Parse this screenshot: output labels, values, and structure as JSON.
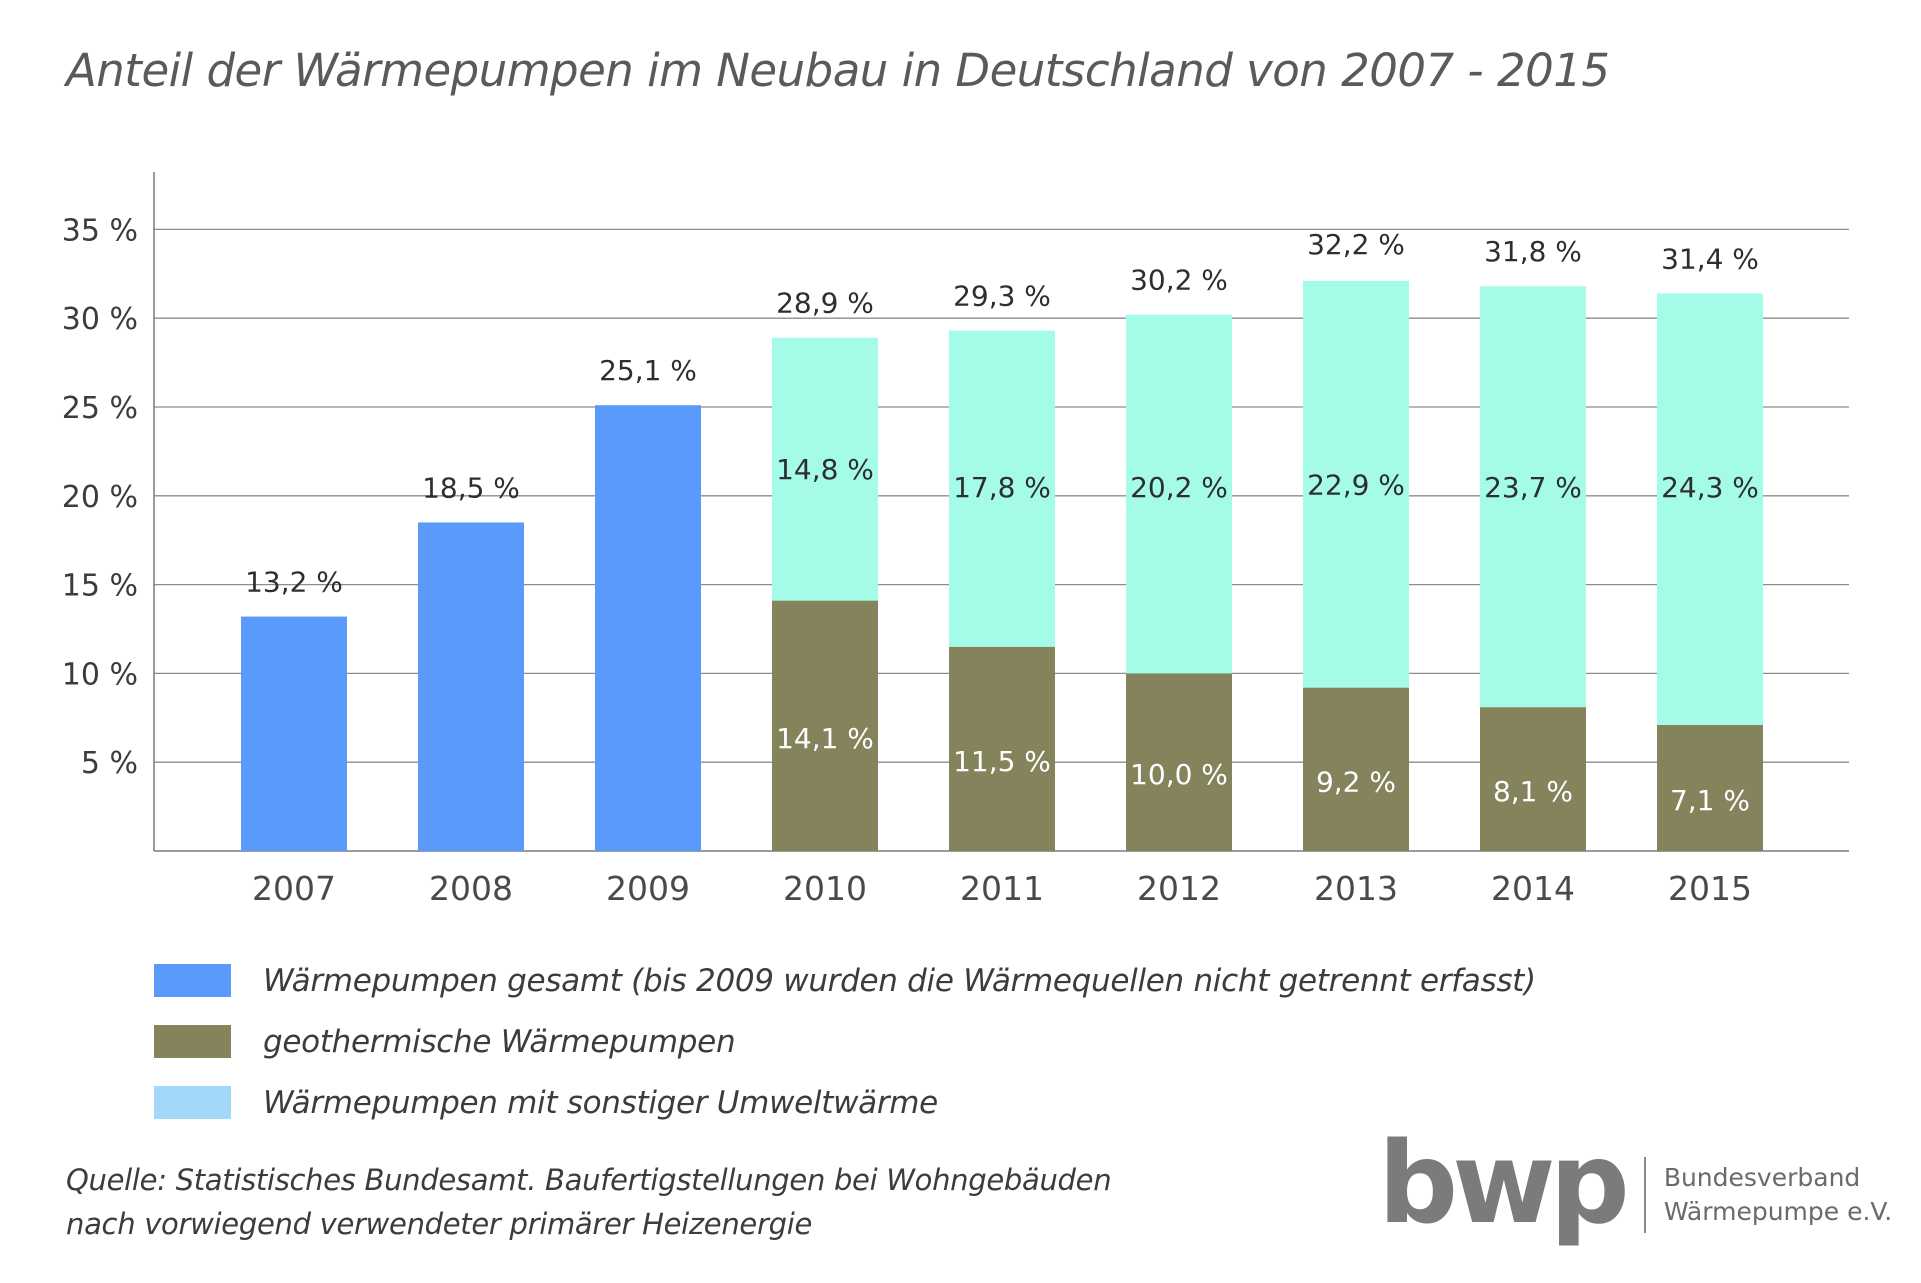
{
  "chart_data": {
    "type": "bar",
    "stacked": true,
    "title": "Anteil der Wärmepumpen im Neubau in Deutschland von 2007 - 2015",
    "categories": [
      "2007",
      "2008",
      "2009",
      "2010",
      "2011",
      "2012",
      "2013",
      "2014",
      "2015"
    ],
    "ylim": [
      0,
      38
    ],
    "yticks": [
      5,
      10,
      15,
      20,
      25,
      30,
      35
    ],
    "ytick_labels": [
      "5 %",
      "10 %",
      "15 %",
      "20 %",
      "25 %",
      "30 %",
      "35 %"
    ],
    "grid": true,
    "legend_position": "bottom",
    "series": [
      {
        "name": "Wärmepumpen gesamt (bis 2009 wurden die Wärmequellen nicht getrennt erfasst)",
        "color": "#5a9afa",
        "values": [
          13.2,
          18.5,
          25.1,
          null,
          null,
          null,
          null,
          null,
          null
        ],
        "labels": [
          "13,2 %",
          "18,5 %",
          "25,1 %",
          "",
          "",
          "",
          "",
          "",
          ""
        ]
      },
      {
        "name": "geothermische Wärmepumpen",
        "color": "#85835c",
        "values": [
          null,
          null,
          null,
          14.1,
          11.5,
          10.0,
          9.2,
          8.1,
          7.1
        ],
        "labels": [
          "",
          "",
          "",
          "14,1 %",
          "11,5 %",
          "10,0 %",
          "9,2 %",
          "8,1 %",
          "7,1 %"
        ]
      },
      {
        "name": "Wärmepumpen mit sonstiger Umweltwärme",
        "color": "#a4fce8",
        "legend_color": "#a3d8fb",
        "values": [
          null,
          null,
          null,
          14.8,
          17.8,
          20.2,
          22.9,
          23.7,
          24.3
        ],
        "labels": [
          "",
          "",
          "",
          "14,8 %",
          "17,8 %",
          "20,2 %",
          "22,9 %",
          "23,7 %",
          "24,3 %"
        ]
      }
    ],
    "totals": [
      13.2,
      18.5,
      25.1,
      28.9,
      29.3,
      30.2,
      32.2,
      31.8,
      31.4
    ],
    "total_labels": [
      "13,2 %",
      "18,5 %",
      "25,1 %",
      "28,9 %",
      "29,3 %",
      "30,2 %",
      "32,2 %",
      "31,8 %",
      "31,4 %"
    ]
  },
  "source": {
    "line1": "Quelle: Statistisches Bundesamt. Baufertigstellungen bei Wohngebäuden",
    "line2": "nach vorwiegend verwendeter primärer Heizenergie"
  },
  "logo": {
    "mark": "bwp",
    "line1": "Bundesverband",
    "line2": "Wärmepumpe e.V."
  }
}
